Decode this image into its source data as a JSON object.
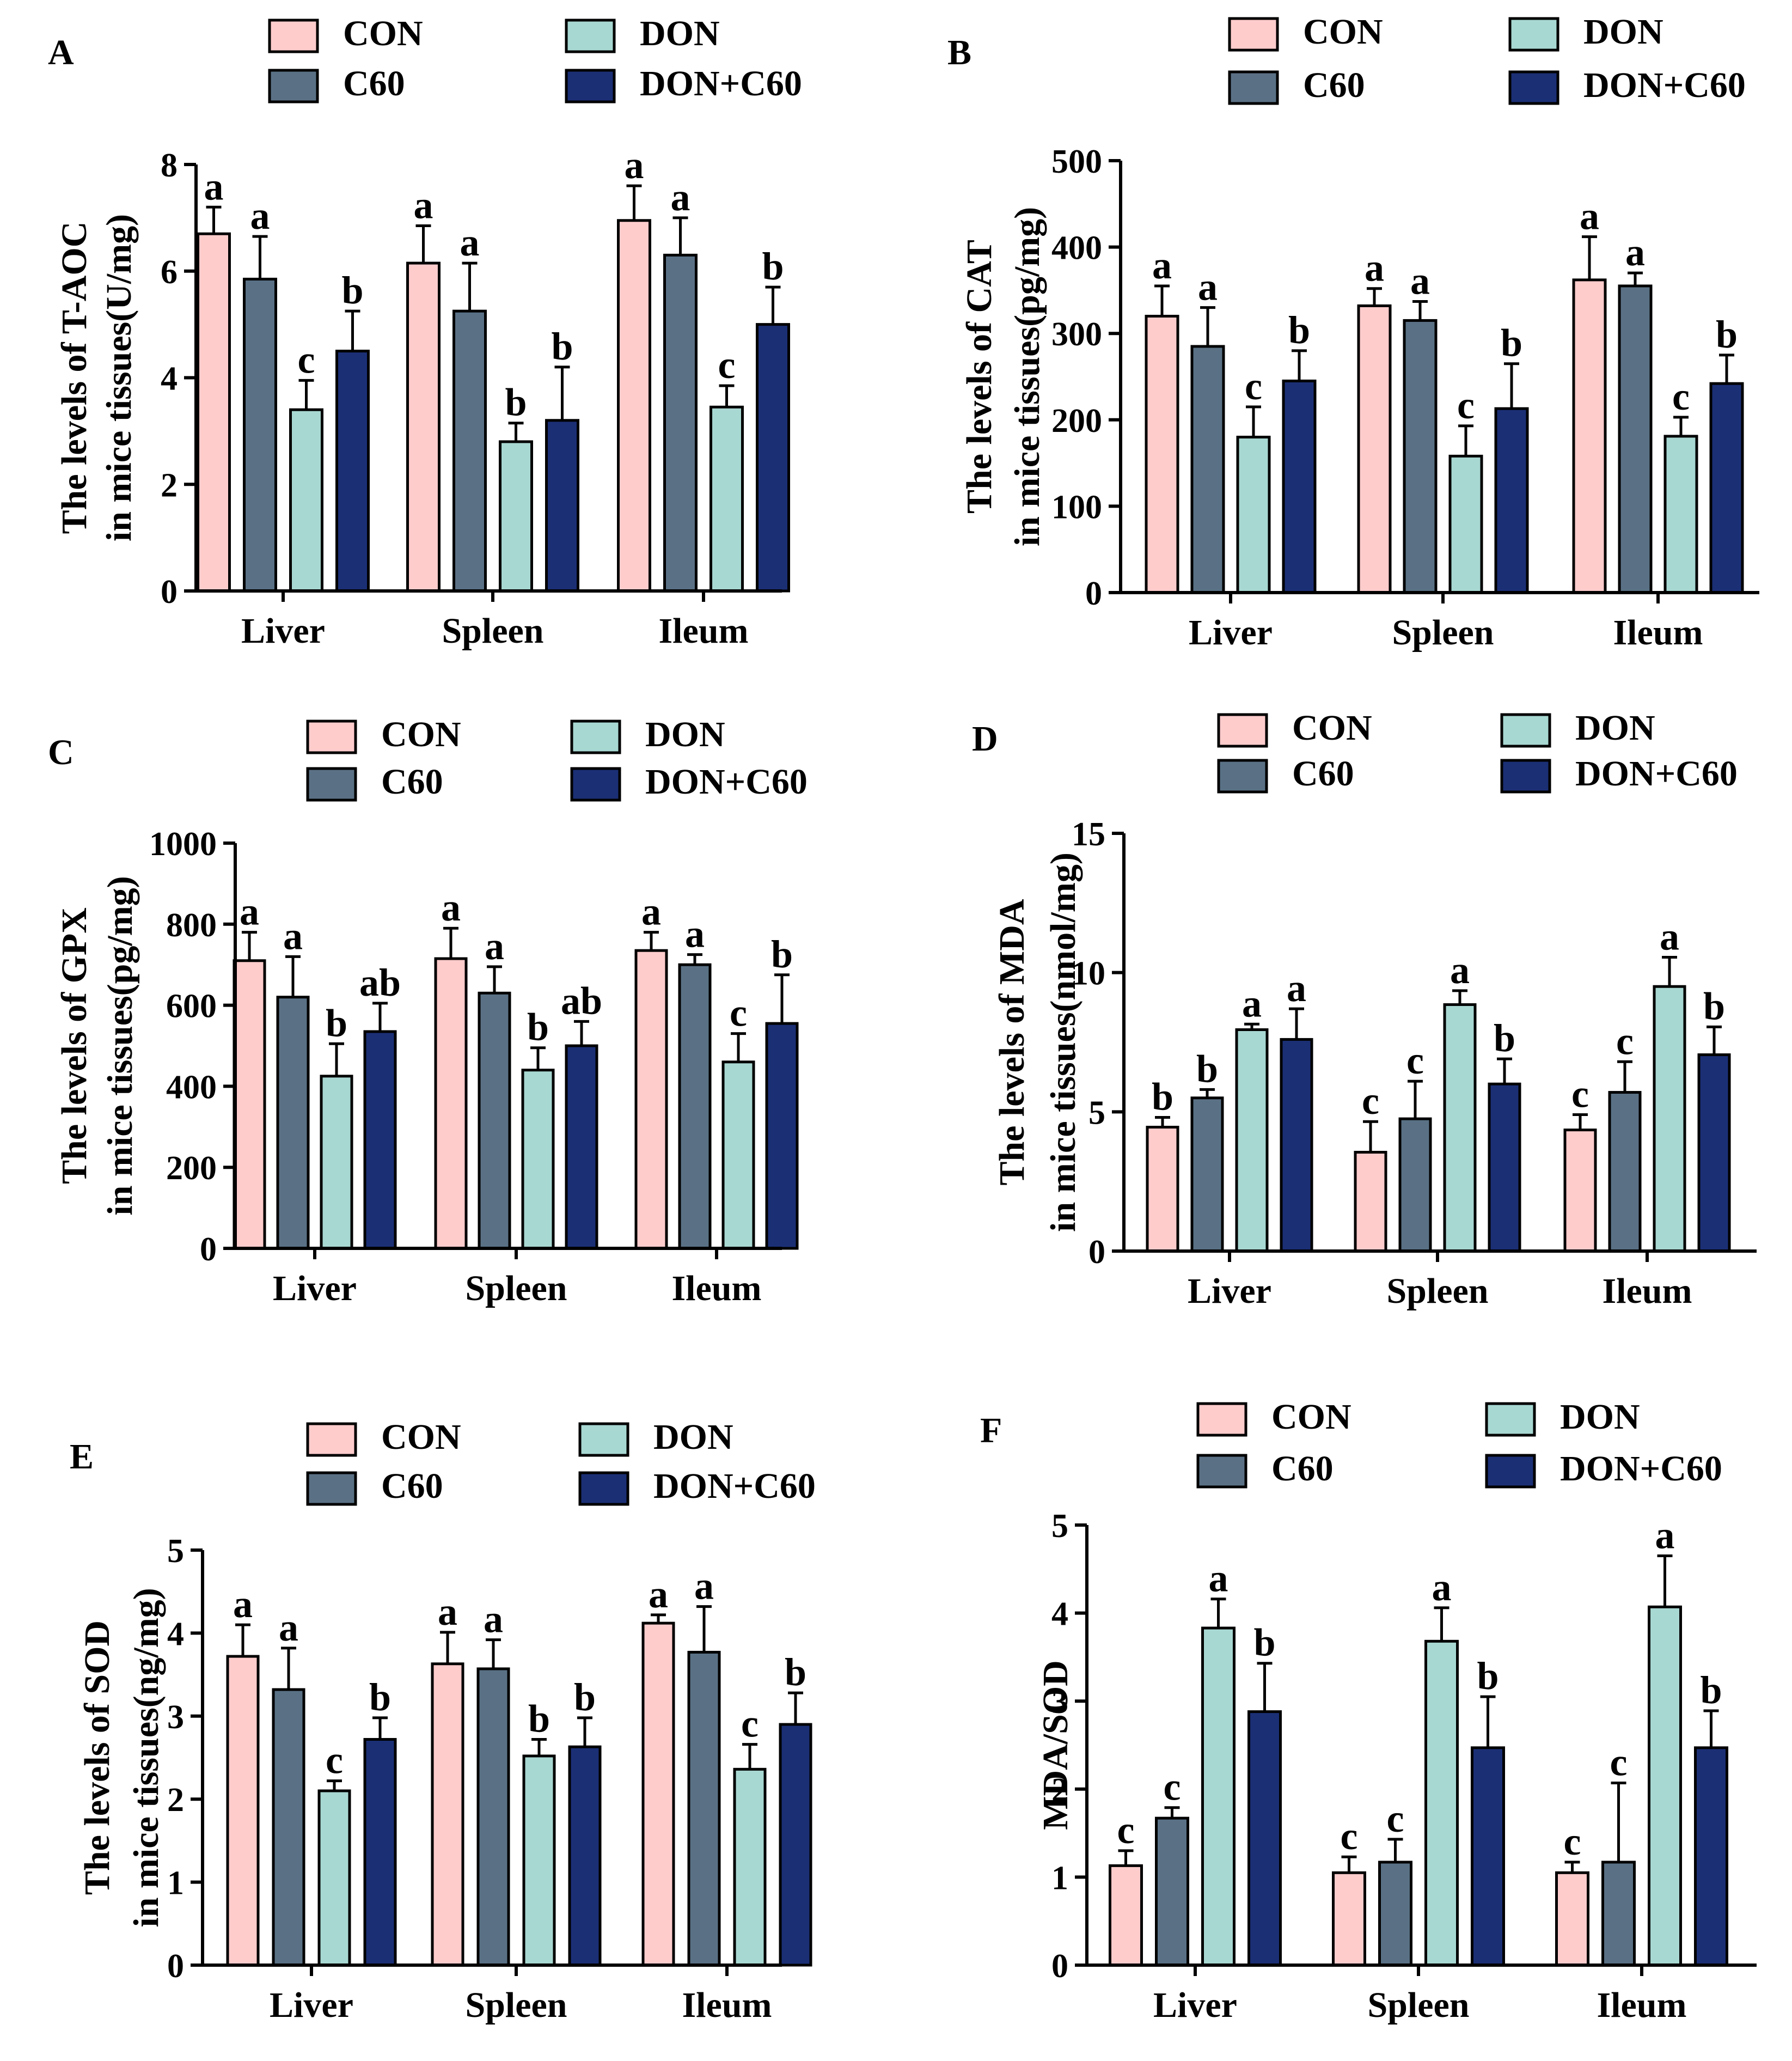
{
  "legend_labels": [
    "CON",
    "C60",
    "DON",
    "DON+C60"
  ],
  "colors": {
    "CON": "#FFCCCC",
    "C60": "#5A7185",
    "DON": "#A8D8D2",
    "DON+C60": "#1B2F75",
    "axis": "#000000"
  },
  "chart_data": [
    {
      "panel": "A",
      "type": "bar",
      "ylabel": [
        "The levels of T-AOC",
        "in mice tissues(U/mg)"
      ],
      "categories": [
        "Liver",
        "Spleen",
        "Ileum"
      ],
      "ylim": [
        0,
        8
      ],
      "yticks": [
        0,
        2,
        4,
        6,
        8
      ],
      "series": [
        {
          "name": "CON",
          "values": [
            6.7,
            6.15,
            6.95
          ],
          "errors": [
            0.5,
            0.7,
            0.65
          ],
          "letters": [
            "a",
            "a",
            "a"
          ]
        },
        {
          "name": "C60",
          "values": [
            5.85,
            5.25,
            6.3
          ],
          "errors": [
            0.8,
            0.9,
            0.7
          ],
          "letters": [
            "a",
            "a",
            "a"
          ]
        },
        {
          "name": "DON",
          "values": [
            3.4,
            2.8,
            3.45
          ],
          "errors": [
            0.55,
            0.35,
            0.4
          ],
          "letters": [
            "c",
            "b",
            "c"
          ]
        },
        {
          "name": "DON+C60",
          "values": [
            4.5,
            3.2,
            5.0
          ],
          "errors": [
            0.75,
            1.0,
            0.7
          ],
          "letters": [
            "b",
            "b",
            "b"
          ]
        }
      ]
    },
    {
      "panel": "B",
      "type": "bar",
      "ylabel": [
        "The levels of CAT",
        "in mice tissues(pg/mg)"
      ],
      "categories": [
        "Liver",
        "Spleen",
        "Ileum"
      ],
      "ylim": [
        0,
        500
      ],
      "yticks": [
        0,
        100,
        200,
        300,
        400,
        500
      ],
      "series": [
        {
          "name": "CON",
          "values": [
            320,
            332,
            362
          ],
          "errors": [
            35,
            20,
            50
          ],
          "letters": [
            "a",
            "a",
            "a"
          ]
        },
        {
          "name": "C60",
          "values": [
            285,
            315,
            355
          ],
          "errors": [
            45,
            22,
            15
          ],
          "letters": [
            "a",
            "a",
            "a"
          ]
        },
        {
          "name": "DON",
          "values": [
            180,
            158,
            181
          ],
          "errors": [
            35,
            35,
            22
          ],
          "letters": [
            "c",
            "c",
            "c"
          ]
        },
        {
          "name": "DON+C60",
          "values": [
            245,
            213,
            242
          ],
          "errors": [
            35,
            52,
            33
          ],
          "letters": [
            "b",
            "b",
            "b"
          ]
        }
      ]
    },
    {
      "panel": "C",
      "type": "bar",
      "ylabel": [
        "The levels of GPX",
        "in mice tissues(pg/mg)"
      ],
      "categories": [
        "Liver",
        "Spleen",
        "Ileum"
      ],
      "ylim": [
        0,
        1000
      ],
      "yticks": [
        0,
        200,
        400,
        600,
        800,
        1000
      ],
      "series": [
        {
          "name": "CON",
          "values": [
            710,
            715,
            735
          ],
          "errors": [
            70,
            75,
            45
          ],
          "letters": [
            "a",
            "a",
            "a"
          ]
        },
        {
          "name": "C60",
          "values": [
            620,
            630,
            700
          ],
          "errors": [
            100,
            65,
            25
          ],
          "letters": [
            "a",
            "a",
            "a"
          ]
        },
        {
          "name": "DON",
          "values": [
            425,
            440,
            460
          ],
          "errors": [
            80,
            55,
            70
          ],
          "letters": [
            "b",
            "b",
            "c"
          ]
        },
        {
          "name": "DON+C60",
          "values": [
            535,
            500,
            555
          ],
          "errors": [
            70,
            60,
            120
          ],
          "letters": [
            "ab",
            "ab",
            "b"
          ]
        }
      ]
    },
    {
      "panel": "D",
      "type": "bar",
      "ylabel": [
        "The levels of MDA",
        "in mice tissues(nmol/mg)"
      ],
      "categories": [
        "Liver",
        "Spleen",
        "Ileum"
      ],
      "ylim": [
        0,
        15
      ],
      "yticks": [
        0,
        5,
        10,
        15
      ],
      "series": [
        {
          "name": "CON",
          "values": [
            4.45,
            3.55,
            4.35
          ],
          "errors": [
            0.35,
            1.1,
            0.55
          ],
          "letters": [
            "b",
            "c",
            "c"
          ]
        },
        {
          "name": "C60",
          "values": [
            5.5,
            4.75,
            5.7
          ],
          "errors": [
            0.3,
            1.35,
            1.1
          ],
          "letters": [
            "b",
            "c",
            "c"
          ]
        },
        {
          "name": "DON",
          "values": [
            7.95,
            8.85,
            9.5
          ],
          "errors": [
            0.2,
            0.5,
            1.05
          ],
          "letters": [
            "a",
            "a",
            "a"
          ]
        },
        {
          "name": "DON+C60",
          "values": [
            7.6,
            6.0,
            7.05
          ],
          "errors": [
            1.1,
            0.9,
            1.0
          ],
          "letters": [
            "a",
            "b",
            "b"
          ]
        }
      ]
    },
    {
      "panel": "E",
      "type": "bar",
      "ylabel": [
        "The levels of SOD",
        "in mice tissues(ng/mg)"
      ],
      "categories": [
        "Liver",
        "Spleen",
        "Ileum"
      ],
      "ylim": [
        0,
        5
      ],
      "yticks": [
        0,
        1,
        2,
        3,
        4,
        5
      ],
      "series": [
        {
          "name": "CON",
          "values": [
            3.72,
            3.63,
            4.12
          ],
          "errors": [
            0.38,
            0.38,
            0.1
          ],
          "letters": [
            "a",
            "a",
            "a"
          ]
        },
        {
          "name": "C60",
          "values": [
            3.32,
            3.57,
            3.77
          ],
          "errors": [
            0.5,
            0.35,
            0.55
          ],
          "letters": [
            "a",
            "a",
            "a"
          ]
        },
        {
          "name": "DON",
          "values": [
            2.1,
            2.52,
            2.36
          ],
          "errors": [
            0.12,
            0.2,
            0.3
          ],
          "letters": [
            "c",
            "b",
            "c"
          ]
        },
        {
          "name": "DON+C60",
          "values": [
            2.72,
            2.63,
            2.9
          ],
          "errors": [
            0.26,
            0.35,
            0.38
          ],
          "letters": [
            "b",
            "b",
            "b"
          ]
        }
      ]
    },
    {
      "panel": "F",
      "type": "bar",
      "ylabel": [
        "MDA/SOD"
      ],
      "categories": [
        "Liver",
        "Spleen",
        "Ileum"
      ],
      "ylim": [
        0,
        5
      ],
      "yticks": [
        0,
        1,
        2,
        3,
        4,
        5
      ],
      "series": [
        {
          "name": "CON",
          "values": [
            1.13,
            1.05,
            1.05
          ],
          "errors": [
            0.17,
            0.18,
            0.12
          ],
          "letters": [
            "c",
            "c",
            "c"
          ]
        },
        {
          "name": "C60",
          "values": [
            1.67,
            1.17,
            1.17
          ],
          "errors": [
            0.12,
            0.26,
            0.9
          ],
          "letters": [
            "c",
            "c",
            "c"
          ]
        },
        {
          "name": "DON",
          "values": [
            3.83,
            3.68,
            4.07
          ],
          "errors": [
            0.33,
            0.38,
            0.58
          ],
          "letters": [
            "a",
            "a",
            "a"
          ]
        },
        {
          "name": "DON+C60",
          "values": [
            2.88,
            2.47,
            2.47
          ],
          "errors": [
            0.55,
            0.58,
            0.42
          ],
          "letters": [
            "b",
            "b",
            "b"
          ]
        }
      ]
    }
  ]
}
